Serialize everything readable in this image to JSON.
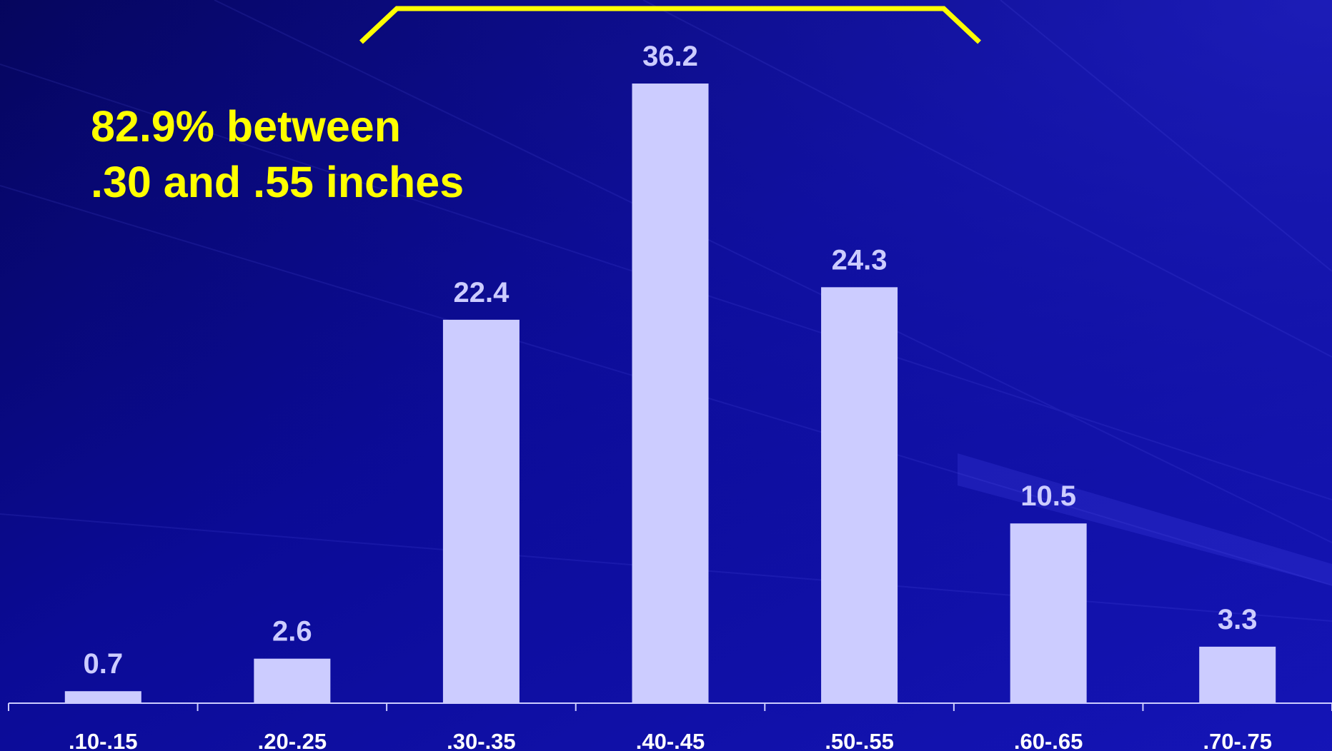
{
  "colors": {
    "background": "#0a0a8c",
    "bar": "#ccccff",
    "value_label": "#ccccff",
    "tick_label": "#ffffff",
    "annotation": "#ffff00",
    "bracket": "#ffff00",
    "axis": "#ccccff"
  },
  "annotation": {
    "line1": "82.9% between",
    "line2": ".30 and .55 inches"
  },
  "chart_data": {
    "type": "bar",
    "categories": [
      ".10-.15",
      ".20-.25",
      ".30-.35",
      ".40-.45",
      ".50-.55",
      ".60-.65",
      ".70-.75"
    ],
    "values": [
      0.7,
      2.6,
      22.4,
      36.2,
      24.3,
      10.5,
      3.3
    ],
    "value_labels": [
      "0.7",
      "2.6",
      "22.4",
      "36.2",
      "24.3",
      "10.5",
      "3.3"
    ],
    "title": "",
    "xlabel": "",
    "ylabel": "",
    "ylim": [
      0,
      36.2
    ],
    "grid": false,
    "legend": "none",
    "bracket_span": [
      ".30-.35",
      ".50-.55"
    ]
  }
}
